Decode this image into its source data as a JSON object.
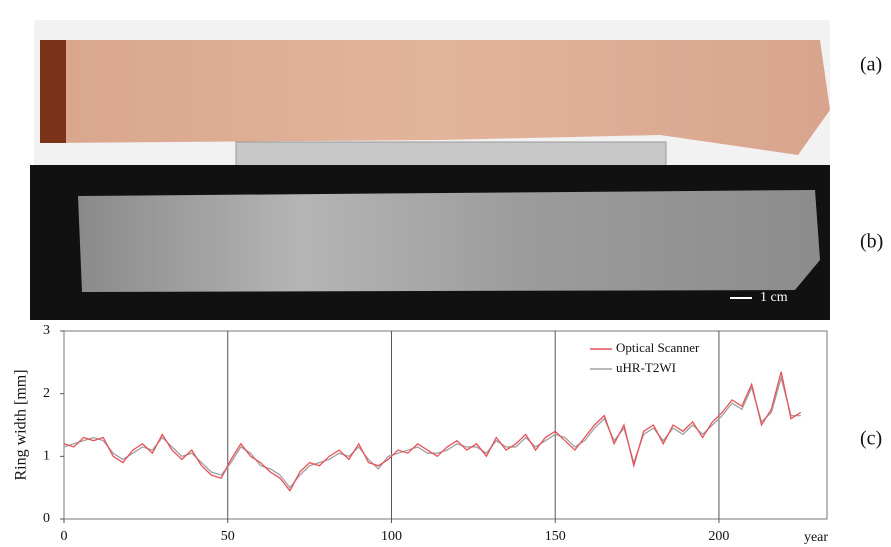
{
  "panel_labels": [
    "(a)",
    "(b)",
    "(c)"
  ],
  "scale_bar": "1 cm",
  "chart_data": {
    "type": "line",
    "ylabel": "Ring width [mm]",
    "xlabel": "year",
    "x": [
      0,
      3,
      6,
      9,
      12,
      15,
      18,
      21,
      24,
      27,
      30,
      33,
      36,
      39,
      42,
      45,
      48,
      51,
      54,
      57,
      60,
      63,
      66,
      69,
      72,
      75,
      78,
      81,
      84,
      87,
      90,
      93,
      96,
      99,
      102,
      105,
      108,
      111,
      114,
      117,
      120,
      123,
      126,
      129,
      132,
      135,
      138,
      141,
      144,
      147,
      150,
      153,
      156,
      159,
      162,
      165,
      168,
      171,
      174,
      177,
      180,
      183,
      186,
      189,
      192,
      195,
      198,
      201,
      204,
      207,
      210,
      213,
      216,
      219,
      222,
      225
    ],
    "series": [
      {
        "name": "Optical Scanner",
        "color": "#e8525a",
        "values": [
          1.2,
          1.15,
          1.3,
          1.25,
          1.3,
          1.0,
          0.9,
          1.1,
          1.2,
          1.05,
          1.35,
          1.1,
          0.95,
          1.1,
          0.85,
          0.7,
          0.65,
          0.95,
          1.2,
          1.0,
          0.9,
          0.75,
          0.65,
          0.45,
          0.75,
          0.9,
          0.85,
          1.0,
          1.1,
          0.95,
          1.2,
          0.9,
          0.85,
          0.95,
          1.1,
          1.05,
          1.2,
          1.1,
          1.0,
          1.15,
          1.25,
          1.1,
          1.2,
          1.0,
          1.3,
          1.1,
          1.2,
          1.35,
          1.1,
          1.3,
          1.4,
          1.25,
          1.1,
          1.3,
          1.5,
          1.65,
          1.2,
          1.5,
          0.85,
          1.4,
          1.5,
          1.2,
          1.5,
          1.4,
          1.55,
          1.3,
          1.55,
          1.7,
          1.9,
          1.8,
          2.15,
          1.5,
          1.75,
          2.35,
          1.6,
          1.7
        ]
      },
      {
        "name": "uHR-T2WI",
        "color": "#a0a0a0",
        "values": [
          1.15,
          1.2,
          1.25,
          1.3,
          1.25,
          1.05,
          0.95,
          1.05,
          1.15,
          1.1,
          1.3,
          1.15,
          1.0,
          1.05,
          0.9,
          0.75,
          0.7,
          0.9,
          1.15,
          1.05,
          0.85,
          0.8,
          0.7,
          0.5,
          0.7,
          0.85,
          0.9,
          0.95,
          1.05,
          1.0,
          1.15,
          0.95,
          0.8,
          1.0,
          1.05,
          1.1,
          1.15,
          1.05,
          1.05,
          1.1,
          1.2,
          1.15,
          1.15,
          1.05,
          1.25,
          1.15,
          1.15,
          1.3,
          1.15,
          1.25,
          1.35,
          1.3,
          1.15,
          1.25,
          1.45,
          1.6,
          1.25,
          1.45,
          0.9,
          1.35,
          1.45,
          1.25,
          1.45,
          1.35,
          1.5,
          1.35,
          1.5,
          1.65,
          1.85,
          1.75,
          2.1,
          1.55,
          1.7,
          2.25,
          1.65,
          1.65
        ]
      }
    ],
    "xlim": [
      0,
      233
    ],
    "ylim": [
      0,
      3
    ],
    "xticks": [
      0,
      50,
      100,
      150,
      200
    ],
    "yticks": [
      0,
      1,
      2,
      3
    ],
    "vertical_grid": [
      50,
      100,
      150,
      200
    ],
    "legend": "upper right"
  }
}
